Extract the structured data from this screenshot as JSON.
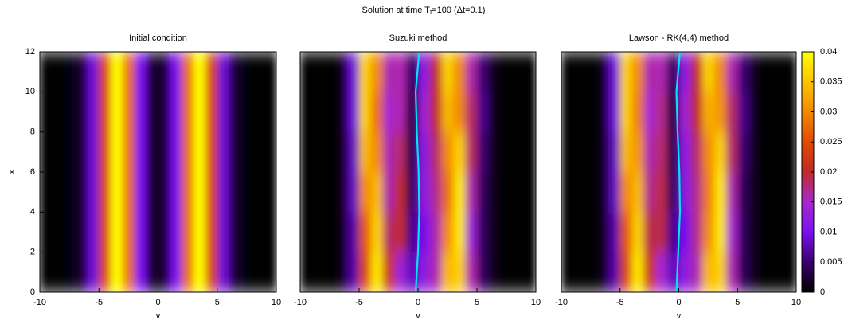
{
  "title": [
    "Solution at time T",
    "f",
    "=100 (Δt=0.1)"
  ],
  "colorbar": {
    "zlim": [
      0,
      0.04
    ],
    "zticks": [
      0,
      0.005,
      0.01,
      0.015,
      0.02,
      0.025,
      0.03,
      0.035,
      0.04
    ],
    "colors": [
      "#000000",
      "#3a0070",
      "#7a10f0",
      "#a828d0",
      "#c02a2a",
      "#e04a00",
      "#f38a00",
      "#fbc400",
      "#ffff00"
    ]
  },
  "chart_data": [
    {
      "type": "heatmap",
      "title": "Initial condition",
      "xlabel": "v",
      "ylabel": "x",
      "xlim": [
        -10,
        10
      ],
      "ylim": [
        0,
        12
      ],
      "xticks": [
        -10,
        -5,
        0,
        5,
        10
      ],
      "yticks": [
        0,
        2,
        4,
        6,
        8,
        10,
        12
      ],
      "xbins": [
        -10,
        -9,
        -8,
        -7,
        -6,
        -5,
        -4,
        -3,
        -2,
        -1,
        0,
        1,
        2,
        3,
        4,
        5,
        6,
        7,
        8,
        9,
        10
      ],
      "ybins": [
        0,
        12
      ],
      "z": [
        [
          0,
          0,
          0.0003,
          0.002,
          0.009,
          0.024,
          0.04,
          0.028,
          0.01,
          0.002,
          0.002,
          0.01,
          0.028,
          0.04,
          0.024,
          0.009,
          0.002,
          0.0003,
          0,
          0
        ]
      ]
    },
    {
      "type": "heatmap",
      "title": "Suzuki method",
      "xlabel": "v",
      "xlim": [
        -10,
        10
      ],
      "ylim": [
        0,
        12
      ],
      "xticks": [
        -10,
        -5,
        0,
        5,
        10
      ],
      "xbins": [
        -10,
        -9,
        -8,
        -7,
        -6,
        -5,
        -4,
        -3,
        -2,
        -1,
        0,
        1,
        2,
        3,
        4,
        5,
        6,
        7,
        8,
        9,
        10
      ],
      "ybins": [
        0,
        2,
        4,
        6,
        8,
        10,
        12
      ],
      "z": [
        [
          0,
          0,
          0,
          0.001,
          0.007,
          0.024,
          0.038,
          0.022,
          0.014,
          0.008,
          0.012,
          0.016,
          0.034,
          0.036,
          0.016,
          0.004,
          0.001,
          0,
          0,
          0
        ],
        [
          0,
          0,
          0,
          0.001,
          0.007,
          0.026,
          0.036,
          0.018,
          0.02,
          0.006,
          0.01,
          0.016,
          0.03,
          0.038,
          0.014,
          0.004,
          0.001,
          0,
          0,
          0
        ],
        [
          0,
          0,
          0,
          0.001,
          0.008,
          0.03,
          0.034,
          0.016,
          0.02,
          0.004,
          0.012,
          0.017,
          0.028,
          0.038,
          0.016,
          0.004,
          0.001,
          0,
          0,
          0
        ],
        [
          0,
          0,
          0,
          0.001,
          0.008,
          0.034,
          0.03,
          0.016,
          0.018,
          0.003,
          0.012,
          0.018,
          0.03,
          0.036,
          0.018,
          0.005,
          0.001,
          0,
          0,
          0
        ],
        [
          0,
          0,
          0,
          0.001,
          0.009,
          0.036,
          0.028,
          0.015,
          0.016,
          0.002,
          0.014,
          0.02,
          0.034,
          0.03,
          0.018,
          0.006,
          0.001,
          0,
          0,
          0
        ],
        [
          0,
          0,
          0,
          0.001,
          0.009,
          0.036,
          0.03,
          0.016,
          0.016,
          0.004,
          0.012,
          0.02,
          0.036,
          0.03,
          0.016,
          0.005,
          0.001,
          0,
          0,
          0
        ]
      ],
      "curve": {
        "color": "#00e5ee",
        "v": [
          -0.2,
          0,
          0.1,
          0.05,
          -0.1,
          -0.2,
          0.1
        ],
        "x": [
          0,
          2,
          4,
          6,
          8,
          10,
          12
        ]
      }
    },
    {
      "type": "heatmap",
      "title": "Lawson - RK(4,4) method",
      "xlabel": "v",
      "xlim": [
        -10,
        10
      ],
      "ylim": [
        0,
        12
      ],
      "xticks": [
        -10,
        -5,
        0,
        5,
        10
      ],
      "xbins": [
        -10,
        -9,
        -8,
        -7,
        -6,
        -5,
        -4,
        -3,
        -2,
        -1,
        0,
        1,
        2,
        3,
        4,
        5,
        6,
        7,
        8,
        9,
        10
      ],
      "ybins": [
        0,
        2,
        4,
        6,
        8,
        10,
        12
      ],
      "z": [
        [
          0,
          0,
          0,
          0.001,
          0.007,
          0.024,
          0.038,
          0.022,
          0.015,
          0.008,
          0.012,
          0.016,
          0.034,
          0.036,
          0.016,
          0.004,
          0.001,
          0,
          0,
          0
        ],
        [
          0,
          0,
          0,
          0.001,
          0.007,
          0.026,
          0.036,
          0.019,
          0.019,
          0.006,
          0.01,
          0.017,
          0.03,
          0.038,
          0.015,
          0.004,
          0.001,
          0,
          0,
          0
        ],
        [
          0,
          0,
          0,
          0.001,
          0.008,
          0.03,
          0.034,
          0.017,
          0.019,
          0.004,
          0.012,
          0.017,
          0.029,
          0.038,
          0.016,
          0.004,
          0.001,
          0,
          0,
          0
        ],
        [
          0,
          0,
          0,
          0.001,
          0.008,
          0.034,
          0.031,
          0.016,
          0.018,
          0.003,
          0.012,
          0.018,
          0.03,
          0.036,
          0.018,
          0.005,
          0.001,
          0,
          0,
          0
        ],
        [
          0,
          0,
          0,
          0.001,
          0.009,
          0.036,
          0.029,
          0.015,
          0.017,
          0.002,
          0.014,
          0.02,
          0.033,
          0.031,
          0.018,
          0.006,
          0.001,
          0,
          0,
          0
        ],
        [
          0,
          0,
          0,
          0.001,
          0.009,
          0.036,
          0.03,
          0.016,
          0.016,
          0.004,
          0.012,
          0.02,
          0.036,
          0.03,
          0.016,
          0.005,
          0.001,
          0,
          0,
          0
        ]
      ],
      "curve": {
        "color": "#00e5ee",
        "v": [
          -0.2,
          -0.05,
          0.1,
          0.05,
          -0.1,
          -0.2,
          0.1
        ],
        "x": [
          0,
          2,
          4,
          6,
          8,
          10,
          12
        ]
      }
    }
  ]
}
